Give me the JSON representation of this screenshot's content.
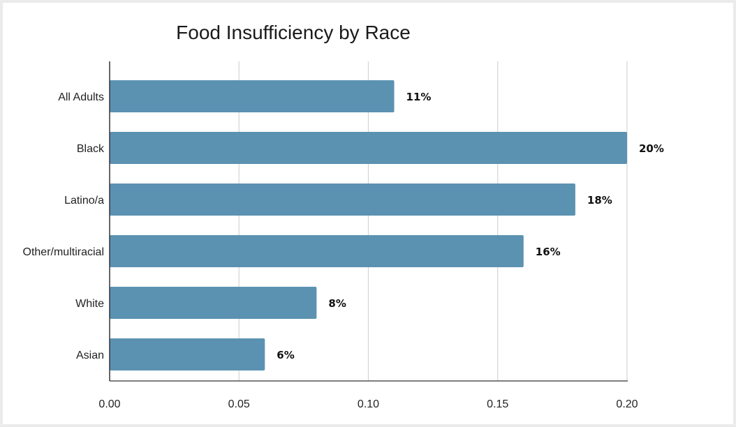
{
  "chart_data": {
    "type": "bar",
    "orientation": "horizontal",
    "title": "Food Insufficiency by Race",
    "xlabel": "",
    "ylabel": "",
    "categories": [
      "All Adults",
      "Black",
      "Latino/a",
      "Other/multiracial",
      "White",
      "Asian"
    ],
    "values": [
      0.11,
      0.2,
      0.18,
      0.16,
      0.08,
      0.06
    ],
    "data_labels": [
      "11%",
      "20%",
      "18%",
      "16%",
      "8%",
      "6%"
    ],
    "xlim": [
      0,
      0.2
    ],
    "x_ticks": [
      0.0,
      0.05,
      0.1,
      0.15,
      0.2
    ],
    "x_tick_labels": [
      "0.00",
      "0.05",
      "0.10",
      "0.15",
      "0.20"
    ],
    "grid": "vertical",
    "legend": "none",
    "bar_color": "#5b92b1",
    "grid_color": "#d4d4d4",
    "axis_color": "#333333"
  }
}
